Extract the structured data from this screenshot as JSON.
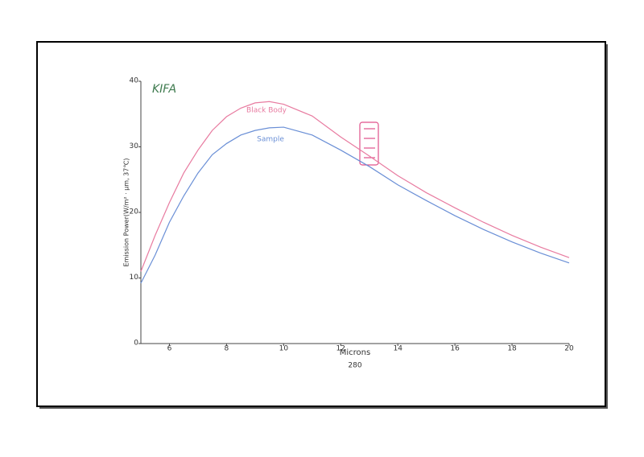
{
  "chart_data": {
    "type": "line",
    "brand": "KIFA",
    "xlabel": "Microns",
    "subtitle": "280",
    "ylabel": "Emission Power(W/m² · μm, 37℃)",
    "x": [
      5,
      5.5,
      6,
      6.5,
      7,
      7.5,
      8,
      8.5,
      9,
      9.5,
      10,
      11,
      12,
      13,
      14,
      15,
      16,
      17,
      18,
      19,
      20
    ],
    "series": [
      {
        "name": "Black Body",
        "color": "#e87ba0",
        "values": [
          11,
          16.5,
          21.5,
          26,
          29.5,
          32.5,
          34.6,
          35.9,
          36.7,
          36.9,
          36.5,
          34.7,
          31.5,
          28.6,
          25.6,
          23.0,
          20.7,
          18.5,
          16.5,
          14.7,
          13.1
        ]
      },
      {
        "name": "Sample",
        "color": "#6a8fd6",
        "values": [
          9.2,
          13.5,
          18.5,
          22.5,
          26,
          28.8,
          30.5,
          31.8,
          32.5,
          32.9,
          33,
          31.8,
          29.5,
          27,
          24.2,
          21.8,
          19.5,
          17.4,
          15.5,
          13.8,
          12.3
        ]
      }
    ],
    "xlim": [
      5,
      20
    ],
    "xticks": [
      6,
      8,
      10,
      12,
      14,
      16,
      18,
      20
    ],
    "ylim": [
      0,
      40
    ],
    "yticks": [
      0,
      10,
      20,
      30,
      40
    ]
  }
}
